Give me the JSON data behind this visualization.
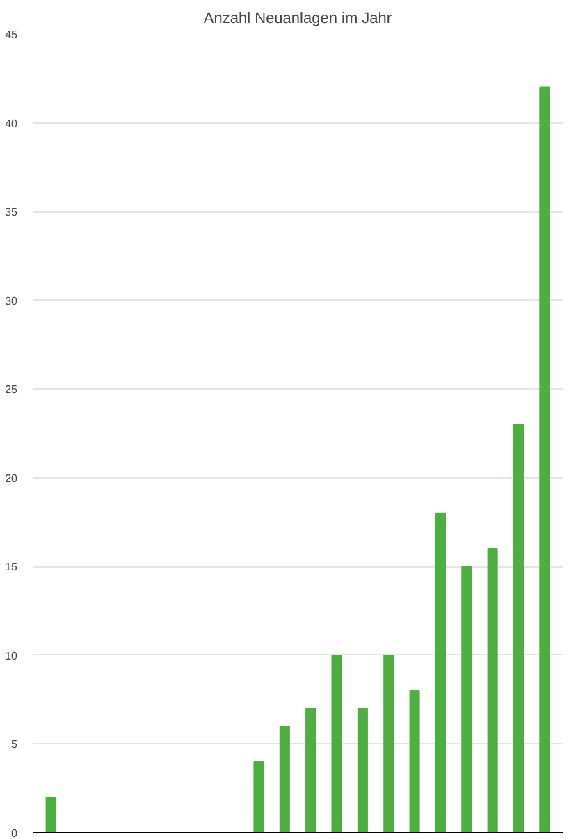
{
  "chart_data": {
    "type": "bar",
    "title": "Anzahl Neuanlagen im Jahr",
    "categories": [
      null,
      null,
      null,
      null,
      null,
      null,
      null,
      null,
      null,
      null,
      null,
      null,
      null,
      null,
      null,
      null,
      null,
      null,
      null,
      null
    ],
    "values": [
      2,
      0,
      0,
      0,
      0,
      0,
      0,
      0,
      4,
      6,
      7,
      10,
      7,
      10,
      8,
      18,
      15,
      16,
      23,
      42
    ],
    "color": "#4caf3f",
    "ylim": [
      0,
      45
    ],
    "yticks": [
      0,
      5,
      10,
      15,
      20,
      25,
      30,
      35,
      40,
      45
    ],
    "grid": "y"
  }
}
